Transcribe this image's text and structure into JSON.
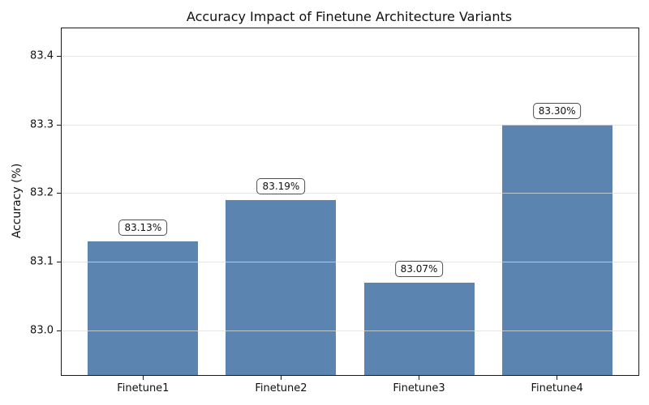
{
  "figure": {
    "background": "#ffffff"
  },
  "chart_data": {
    "type": "bar",
    "title": "Accuracy Impact of Finetune Architecture Variants",
    "xlabel": "",
    "ylabel": "Accuracy (%)",
    "categories": [
      "Finetune1",
      "Finetune2",
      "Finetune3",
      "Finetune4"
    ],
    "values": [
      83.13,
      83.19,
      83.07,
      83.3
    ],
    "bar_labels": [
      "83.13%",
      "83.19%",
      "83.07%",
      "83.30%"
    ],
    "yticks": [
      83.0,
      83.1,
      83.2,
      83.3,
      83.4
    ],
    "ytick_labels": [
      "83.0",
      "83.1",
      "83.2",
      "83.3",
      "83.4"
    ],
    "ylim": [
      82.935,
      83.44
    ],
    "grid": true,
    "legend": false,
    "bar_color": "#5b84b1",
    "gridline_color": "#dddddd",
    "spine_color": "#1a1a1a",
    "text_color": "#111111",
    "annotation_border_color": "#4d4d4d"
  }
}
